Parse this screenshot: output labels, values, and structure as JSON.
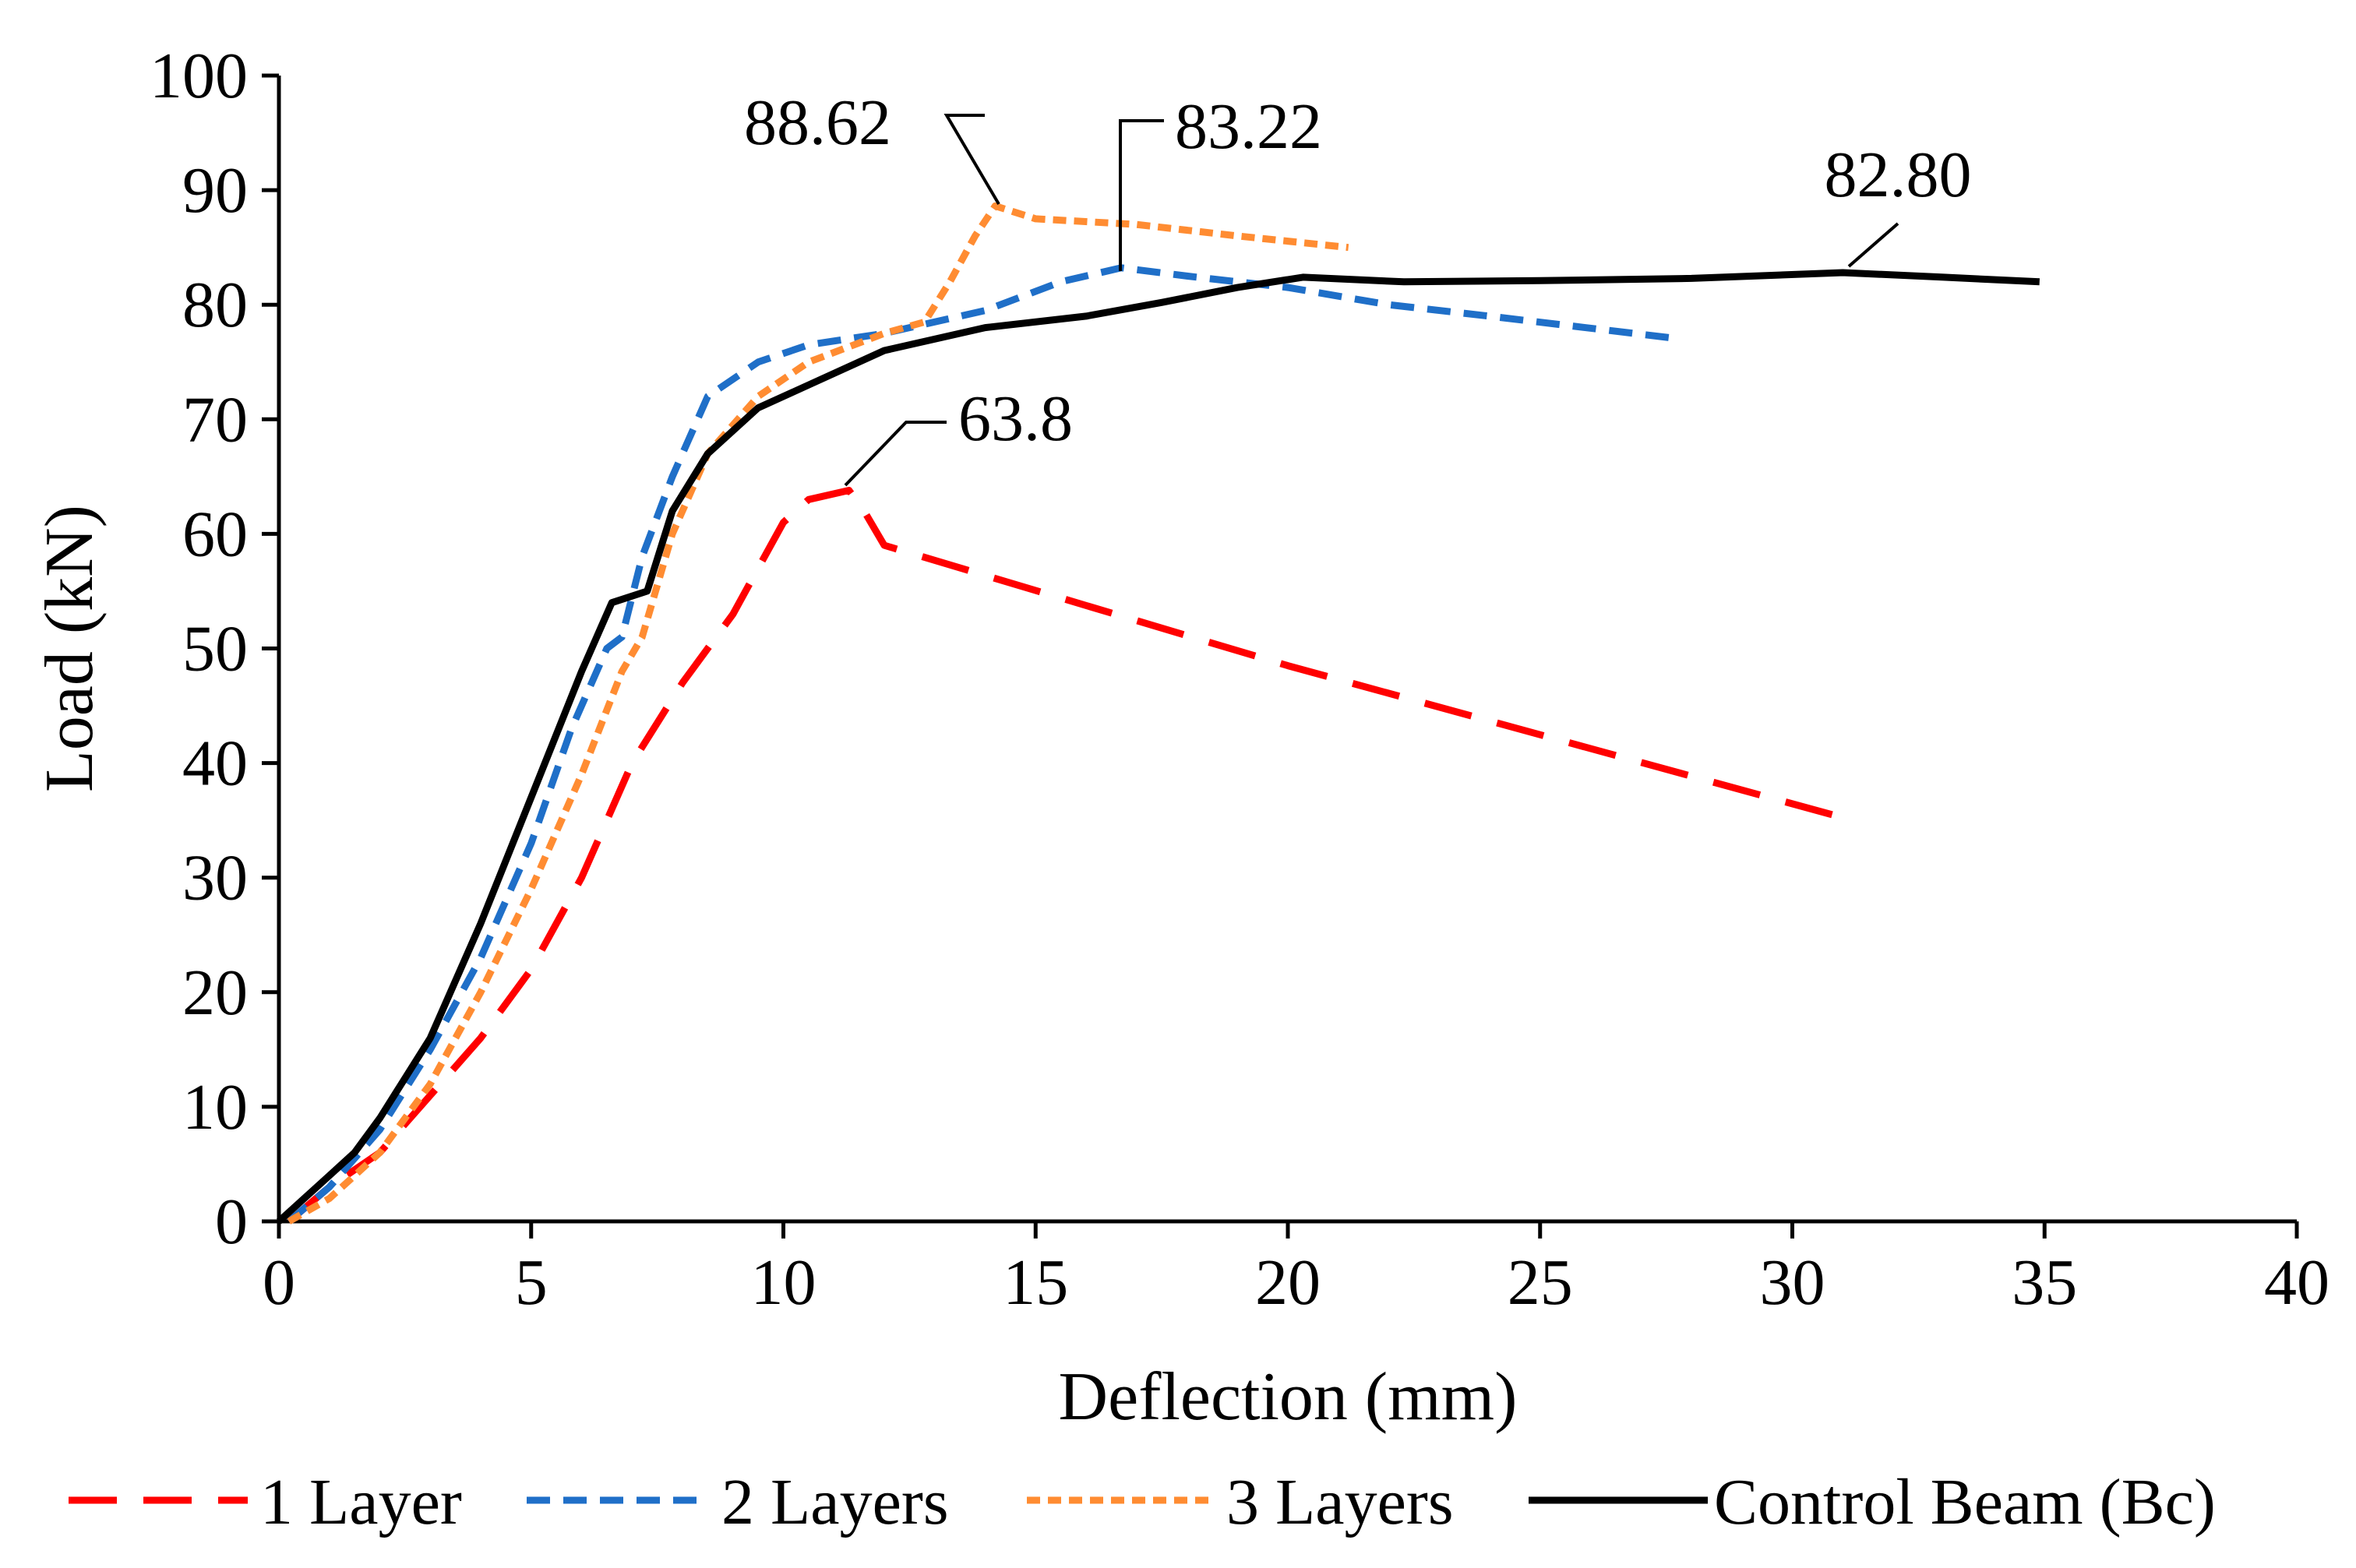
{
  "chart_data": {
    "type": "line",
    "title": "",
    "xlabel": "Deflection (mm)",
    "ylabel": "Load (kN)",
    "xlim": [
      0,
      40
    ],
    "ylim": [
      0,
      100
    ],
    "xticks": [
      0,
      5,
      10,
      15,
      20,
      25,
      30,
      35,
      40
    ],
    "yticks": [
      0,
      10,
      20,
      30,
      40,
      50,
      60,
      70,
      80,
      90,
      100
    ],
    "grid": false,
    "legend_position": "bottom",
    "series": [
      {
        "name": "1 Layer",
        "color": "#ff0000",
        "dash": "long-dash",
        "points": [
          [
            0.2,
            0
          ],
          [
            1,
            3
          ],
          [
            2,
            6
          ],
          [
            3,
            11
          ],
          [
            4,
            16
          ],
          [
            5,
            22
          ],
          [
            6,
            30
          ],
          [
            7,
            40
          ],
          [
            8,
            47
          ],
          [
            9,
            53
          ],
          [
            9.5,
            57
          ],
          [
            10,
            61
          ],
          [
            10.5,
            63
          ],
          [
            11.3,
            63.8
          ],
          [
            11.6,
            62
          ],
          [
            12,
            59
          ],
          [
            20,
            48.5
          ],
          [
            31.2,
            35
          ]
        ]
      },
      {
        "name": "2 Layers",
        "color": "#1f6fc8",
        "dash": "dash",
        "points": [
          [
            0.2,
            0
          ],
          [
            1,
            3
          ],
          [
            2,
            8
          ],
          [
            3,
            15
          ],
          [
            4,
            23
          ],
          [
            5,
            33
          ],
          [
            5.8,
            43
          ],
          [
            6.5,
            50
          ],
          [
            6.8,
            51
          ],
          [
            7.2,
            58
          ],
          [
            7.8,
            65
          ],
          [
            8.5,
            72
          ],
          [
            9.5,
            75
          ],
          [
            10.5,
            76.5
          ],
          [
            12,
            77.5
          ],
          [
            14,
            79.5
          ],
          [
            15.5,
            82
          ],
          [
            16.7,
            83.22
          ],
          [
            18,
            82.5
          ],
          [
            20,
            81.5
          ],
          [
            22,
            80
          ],
          [
            24,
            79
          ],
          [
            27.8,
            77
          ]
        ]
      },
      {
        "name": "3 Layers",
        "color": "#ff8c32",
        "dash": "short-dash",
        "points": [
          [
            0.2,
            0
          ],
          [
            1,
            2
          ],
          [
            2,
            6
          ],
          [
            3,
            12
          ],
          [
            4,
            20
          ],
          [
            5,
            29
          ],
          [
            6,
            39
          ],
          [
            6.8,
            48
          ],
          [
            7.2,
            51
          ],
          [
            7.8,
            60
          ],
          [
            8.5,
            67
          ],
          [
            9.5,
            72
          ],
          [
            10.5,
            75
          ],
          [
            12,
            77.5
          ],
          [
            12.8,
            78.5
          ],
          [
            13.3,
            82
          ],
          [
            13.8,
            86
          ],
          [
            14.2,
            88.62
          ],
          [
            15,
            87.5
          ],
          [
            17,
            87
          ],
          [
            19,
            86
          ],
          [
            21.2,
            85
          ]
        ]
      },
      {
        "name": "Control Beam (Bc)",
        "color": "#000000",
        "dash": "solid",
        "points": [
          [
            0,
            0
          ],
          [
            1,
            4
          ],
          [
            1.5,
            6
          ],
          [
            2,
            9
          ],
          [
            3,
            16
          ],
          [
            4,
            26
          ],
          [
            5,
            37
          ],
          [
            6,
            48
          ],
          [
            6.6,
            54
          ],
          [
            7.3,
            55
          ],
          [
            7.8,
            62
          ],
          [
            8.5,
            67
          ],
          [
            9.5,
            71
          ],
          [
            10.5,
            73
          ],
          [
            12,
            76
          ],
          [
            14,
            78
          ],
          [
            16,
            79
          ],
          [
            17.5,
            80.2
          ],
          [
            19,
            81.5
          ],
          [
            20.3,
            82.4
          ],
          [
            22.3,
            82
          ],
          [
            25,
            82.1
          ],
          [
            28,
            82.3
          ],
          [
            31,
            82.8
          ],
          [
            33,
            82.4
          ],
          [
            34.9,
            82
          ]
        ]
      }
    ],
    "annotations": [
      {
        "text": "88.62",
        "x": 14.2,
        "y": 88.62
      },
      {
        "text": "83.22",
        "x": 16.7,
        "y": 83.22
      },
      {
        "text": "82.80",
        "x": 31.0,
        "y": 82.8
      },
      {
        "text": "63.8",
        "x": 11.3,
        "y": 63.8
      }
    ]
  }
}
